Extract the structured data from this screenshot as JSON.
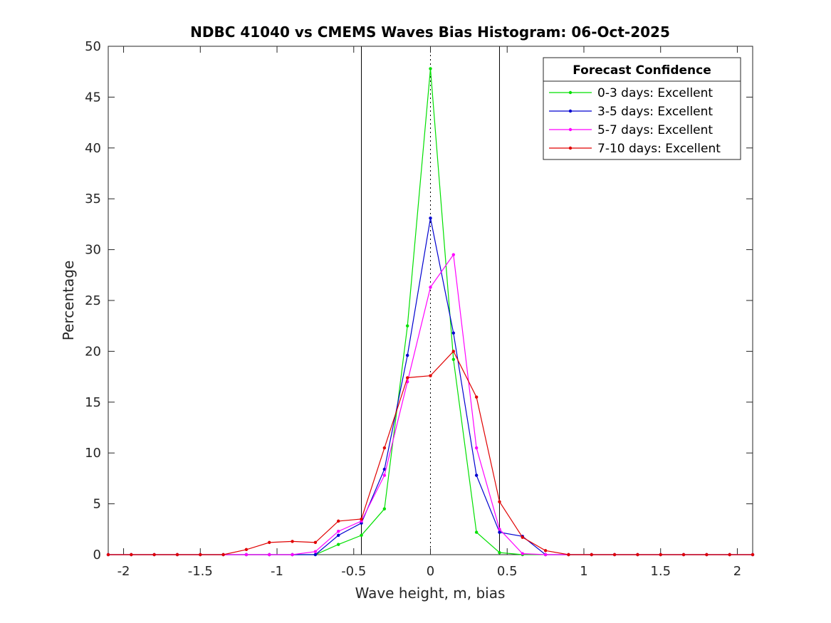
{
  "chart_data": {
    "type": "line",
    "title": "NDBC 41040 vs CMEMS Waves Bias Histogram: 06-Oct-2025",
    "xlabel": "Wave height, m, bias",
    "ylabel": "Percentage",
    "xlim": [
      -2.1,
      2.1
    ],
    "ylim": [
      0,
      50
    ],
    "xticks": [
      -2,
      -1.5,
      -1,
      -0.5,
      0,
      0.5,
      1,
      1.5,
      2
    ],
    "xtick_labels": [
      "-2",
      "-1.5",
      "-1",
      "-0.5",
      "0",
      "0.5",
      "1",
      "1.5",
      "2"
    ],
    "yticks": [
      0,
      5,
      10,
      15,
      20,
      25,
      30,
      35,
      40,
      45,
      50
    ],
    "ytick_labels": [
      "0",
      "5",
      "10",
      "15",
      "20",
      "25",
      "30",
      "35",
      "40",
      "45",
      "50"
    ],
    "vertical_lines": [
      -0.45,
      0.45
    ],
    "zero_line": 0,
    "x": [
      -2.1,
      -1.95,
      -1.8,
      -1.65,
      -1.5,
      -1.35,
      -1.2,
      -1.05,
      -0.9,
      -0.75,
      -0.6,
      -0.45,
      -0.3,
      -0.15,
      0,
      0.15,
      0.3,
      0.45,
      0.6,
      0.75,
      0.9,
      1.05,
      1.2,
      1.35,
      1.5,
      1.65,
      1.8,
      1.95,
      2.1
    ],
    "series": [
      {
        "name": "0-3 days: Excellent",
        "color": "#00e000",
        "values": [
          0,
          0,
          0,
          0,
          0,
          0,
          0,
          0,
          0,
          0,
          1.0,
          1.9,
          4.5,
          22.5,
          47.8,
          19.2,
          2.2,
          0.2,
          0,
          0,
          0,
          0,
          0,
          0,
          0,
          0,
          0,
          0,
          0
        ]
      },
      {
        "name": "3-5 days: Excellent",
        "color": "#0000d0",
        "values": [
          0,
          0,
          0,
          0,
          0,
          0,
          0,
          0,
          0,
          0,
          1.9,
          3.1,
          8.4,
          19.6,
          33.1,
          21.8,
          7.8,
          2.2,
          1.8,
          0,
          0,
          0,
          0,
          0,
          0,
          0,
          0,
          0,
          0
        ]
      },
      {
        "name": "5-7 days: Excellent",
        "color": "#ff00ff",
        "values": [
          0,
          0,
          0,
          0,
          0,
          0,
          0,
          0,
          0,
          0.3,
          2.3,
          3.3,
          7.8,
          17.0,
          26.3,
          29.5,
          10.5,
          2.5,
          0.1,
          0,
          0,
          0,
          0,
          0,
          0,
          0,
          0,
          0,
          0
        ]
      },
      {
        "name": "7-10 days: Excellent",
        "color": "#e00000",
        "values": [
          0,
          0,
          0,
          0,
          0,
          0,
          0.5,
          1.2,
          1.3,
          1.2,
          3.3,
          3.5,
          10.5,
          17.4,
          17.6,
          20.0,
          15.5,
          5.2,
          1.7,
          0.4,
          0,
          0,
          0,
          0,
          0,
          0,
          0,
          0,
          0
        ]
      }
    ],
    "legend": {
      "title": "Forecast Confidence",
      "position": "top-right"
    }
  }
}
